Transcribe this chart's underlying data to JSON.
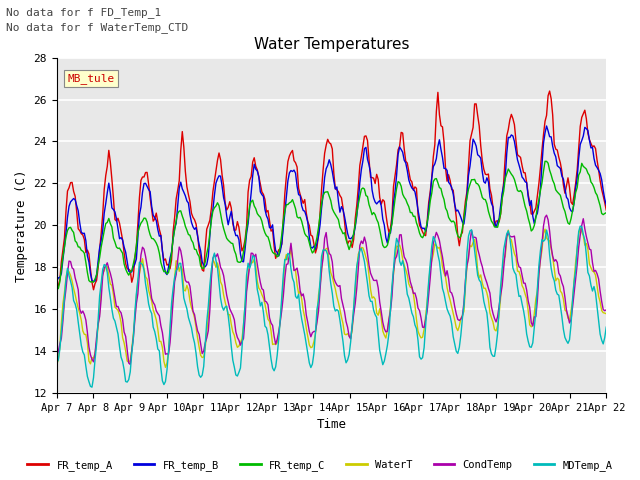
{
  "title": "Water Temperatures",
  "xlabel": "Time",
  "ylabel": "Temperature (C)",
  "annotation_lines": [
    "No data for f FD_Temp_1",
    "No data for f WaterTemp_CTD"
  ],
  "annotation_box": "MB_tule",
  "ylim": [
    12,
    28
  ],
  "yticks": [
    12,
    14,
    16,
    18,
    20,
    22,
    24,
    26,
    28
  ],
  "x_labels": [
    "Apr 7",
    "Apr 8",
    "Apr 9",
    "Apr 10",
    "Apr 11",
    "Apr 12",
    "Apr 13",
    "Apr 14",
    "Apr 15",
    "Apr 16",
    "Apr 17",
    "Apr 18",
    "Apr 19",
    "Apr 20",
    "Apr 21",
    "Apr 22"
  ],
  "series": {
    "FR_temp_A": {
      "color": "#dd0000",
      "lw": 1.0
    },
    "FR_temp_B": {
      "color": "#0000dd",
      "lw": 1.0
    },
    "FR_temp_C": {
      "color": "#00bb00",
      "lw": 1.0
    },
    "WaterT": {
      "color": "#cccc00",
      "lw": 1.0
    },
    "CondTemp": {
      "color": "#aa00aa",
      "lw": 1.0
    },
    "MDTemp_A": {
      "color": "#00bbbb",
      "lw": 1.0
    }
  },
  "background_color": "#e8e8e8",
  "grid_color": "#ffffff",
  "fig_facecolor": "#ffffff"
}
